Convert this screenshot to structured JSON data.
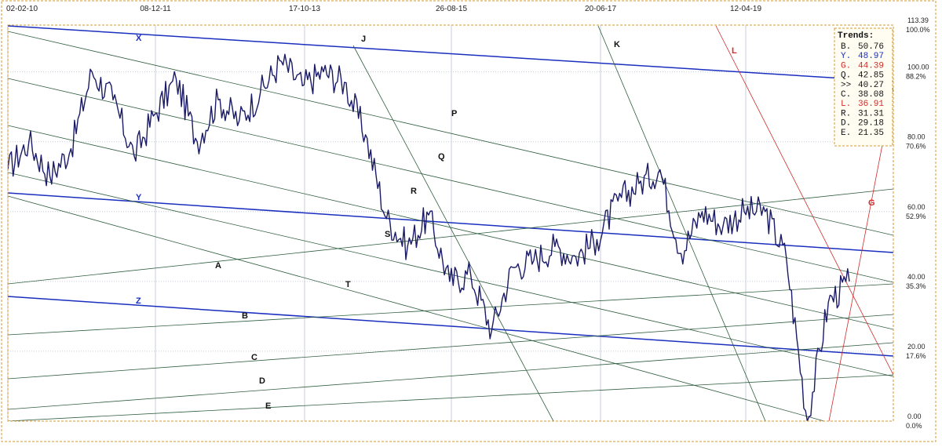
{
  "chart_data": {
    "type": "line",
    "x_ticks": [
      "02-02-10",
      "08-12-11",
      "17-10-13",
      "26-08-15",
      "20-06-17",
      "12-04-19"
    ],
    "y_ticks": [
      {
        "value": "113.39",
        "pct": "100.0%"
      },
      {
        "value": "100.00",
        "pct": "88.2%"
      },
      {
        "value": "80.00",
        "pct": "70.6%"
      },
      {
        "value": "60.00",
        "pct": "52.9%"
      },
      {
        "value": "40.00",
        "pct": "35.3%"
      },
      {
        "value": "20.00",
        "pct": "17.6%"
      },
      {
        "value": "0.00",
        "pct": "0.0%"
      }
    ],
    "ylim": [
      0,
      113.39
    ],
    "grid": true,
    "legend_position": "top-right",
    "colors": {
      "price": "#1a1a66",
      "major_trend": "#1a2ebf",
      "minor_trend": "#2f5e3f",
      "red_trend": "#d22a2a",
      "frame": "#d99a2e",
      "grid": "#c7ced9"
    },
    "series": [
      {
        "data_hint": "weekly close",
        "points": [
          [
            "02-02-10",
            72
          ],
          [
            "2010-06",
            80
          ],
          [
            "2010-10",
            70
          ],
          [
            "2011-01",
            78
          ],
          [
            "2011-04",
            100
          ],
          [
            "2011-07",
            92
          ],
          [
            "2011-10",
            76
          ],
          [
            "08-12-11",
            88
          ],
          [
            "2012-03",
            98
          ],
          [
            "2012-06",
            80
          ],
          [
            "2012-10",
            92
          ],
          [
            "2013-01",
            86
          ],
          [
            "2013-04",
            94
          ],
          [
            "2013-07",
            103
          ],
          [
            "17-10-13",
            96
          ],
          [
            "2014-01",
            100
          ],
          [
            "2014-04",
            97
          ],
          [
            "2014-08",
            82
          ],
          [
            "2014-11",
            58
          ],
          [
            "2015-03",
            50
          ],
          [
            "2015-05",
            59
          ],
          [
            "26-08-15",
            40
          ],
          [
            "2015-11",
            42
          ],
          [
            "2016-02",
            26
          ],
          [
            "2016-05",
            44
          ],
          [
            "2016-09",
            46
          ],
          [
            "2016-12",
            50
          ],
          [
            "2017-03",
            47
          ],
          [
            "20-06-17",
            52
          ],
          [
            "2017-10",
            63
          ],
          [
            "2018-01",
            68
          ],
          [
            "2018-05",
            72
          ],
          [
            "2018-09",
            48
          ],
          [
            "2018-12",
            60
          ],
          [
            "12-04-19",
            56
          ],
          [
            "2019-08",
            60
          ],
          [
            "2019-12",
            60
          ],
          [
            "2020-02",
            47
          ],
          [
            "2020-04",
            0
          ],
          [
            "2020-06",
            34
          ],
          [
            "2020-09",
            40
          ]
        ]
      }
    ],
    "trend_lines": [
      {
        "label": "X",
        "kind": "major"
      },
      {
        "label": "Y",
        "kind": "major"
      },
      {
        "label": "Z",
        "kind": "major"
      },
      {
        "label": "J",
        "kind": "minor"
      },
      {
        "label": "K",
        "kind": "minor"
      },
      {
        "label": "P",
        "kind": "minor"
      },
      {
        "label": "Q",
        "kind": "minor"
      },
      {
        "label": "R",
        "kind": "minor"
      },
      {
        "label": "S",
        "kind": "minor"
      },
      {
        "label": "T",
        "kind": "minor"
      },
      {
        "label": "A",
        "kind": "minor"
      },
      {
        "label": "B",
        "kind": "minor"
      },
      {
        "label": "C",
        "kind": "minor"
      },
      {
        "label": "D",
        "kind": "minor"
      },
      {
        "label": "E",
        "kind": "minor"
      },
      {
        "label": "L",
        "kind": "red"
      },
      {
        "label": "G",
        "kind": "red"
      }
    ],
    "legend": {
      "title": "Trends:",
      "items": [
        {
          "label": "B.",
          "value": "50.76",
          "color": "#111111"
        },
        {
          "label": "Y.",
          "value": "48.97",
          "color": "#1a2ebf"
        },
        {
          "label": "G.",
          "value": "44.39",
          "color": "#d22a2a"
        },
        {
          "label": "Q.",
          "value": "42.85",
          "color": "#111111"
        },
        {
          "label": ">>",
          "value": "40.27",
          "color": "#111111"
        },
        {
          "label": "C.",
          "value": "38.08",
          "color": "#111111"
        },
        {
          "label": "L.",
          "value": "36.91",
          "color": "#d22a2a"
        },
        {
          "label": "R.",
          "value": "31.31",
          "color": "#111111"
        },
        {
          "label": "D.",
          "value": "29.18",
          "color": "#111111"
        },
        {
          "label": "E.",
          "value": "21.35",
          "color": "#111111"
        }
      ]
    }
  }
}
